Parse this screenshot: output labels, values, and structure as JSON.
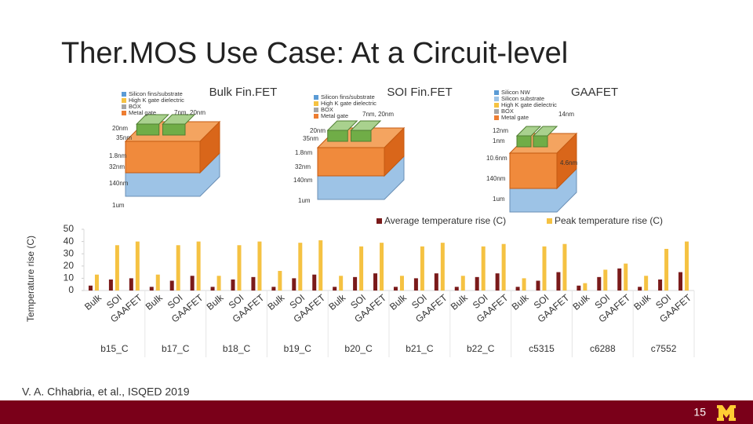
{
  "header": {
    "title": "Ther.MOS Use Case: At a Circuit-level"
  },
  "devices": [
    {
      "title": "Bulk Fin.FET",
      "legend": [
        "Silicon fins/substrate",
        "High K gate dielectric",
        "BOX",
        "Metal gate"
      ],
      "dims": [
        "7nm, 20nm",
        "20nm",
        "35nm",
        "1.8nm",
        "32nm",
        "140nm",
        "1um"
      ]
    },
    {
      "title": "SOI Fin.FET",
      "legend": [
        "Silicon fins/substrate",
        "High K gate dielectric",
        "BOX",
        "Metal gate"
      ],
      "dims": [
        "7nm, 20nm",
        "20nm",
        "35nm",
        "1.8nm",
        "32nm",
        "140nm",
        "1um"
      ]
    },
    {
      "title": "GAAFET",
      "legend": [
        "Silicon NW",
        "Silicon substrate",
        "High K gate dielectric",
        "BOX",
        "Metal gate"
      ],
      "dims": [
        "14nm",
        "12nm",
        "1nm",
        "10.6nm",
        "4.6nm",
        "140nm",
        "1um"
      ]
    }
  ],
  "chart_data": {
    "type": "bar",
    "y_label": "Temperature rise (C)",
    "groups": [
      "b15_C",
      "b17_C",
      "b18_C",
      "b19_C",
      "b20_C",
      "b21_C",
      "b22_C",
      "c5315",
      "c6288",
      "c7552"
    ],
    "subcategories": [
      "Bulk",
      "SOI",
      "GAAFET"
    ],
    "ylim": [
      0,
      50
    ],
    "yticks": [
      0,
      10,
      20,
      30,
      40,
      50
    ],
    "grid": false,
    "legend": "top-right",
    "series": [
      {
        "name": "Average temperature rise (C)",
        "color": "#7a1a1a",
        "values": [
          4,
          9,
          10,
          3,
          8,
          12,
          3,
          9,
          11,
          3,
          10,
          13,
          3,
          11,
          14,
          3,
          10,
          14,
          3,
          11,
          14,
          3,
          8,
          15,
          4,
          11,
          18,
          3,
          9,
          15
        ]
      },
      {
        "name": "Peak temperature rise (C)",
        "color": "#f5c242",
        "values": [
          13,
          37,
          40,
          13,
          37,
          40,
          12,
          37,
          40,
          16,
          39,
          41,
          12,
          36,
          39,
          12,
          36,
          39,
          12,
          36,
          38,
          10,
          36,
          38,
          6,
          17,
          22,
          12,
          34,
          40
        ]
      }
    ]
  },
  "footer": {
    "citation": "V. A. Chhabria, et al., ISQED 2019",
    "page": "15"
  }
}
